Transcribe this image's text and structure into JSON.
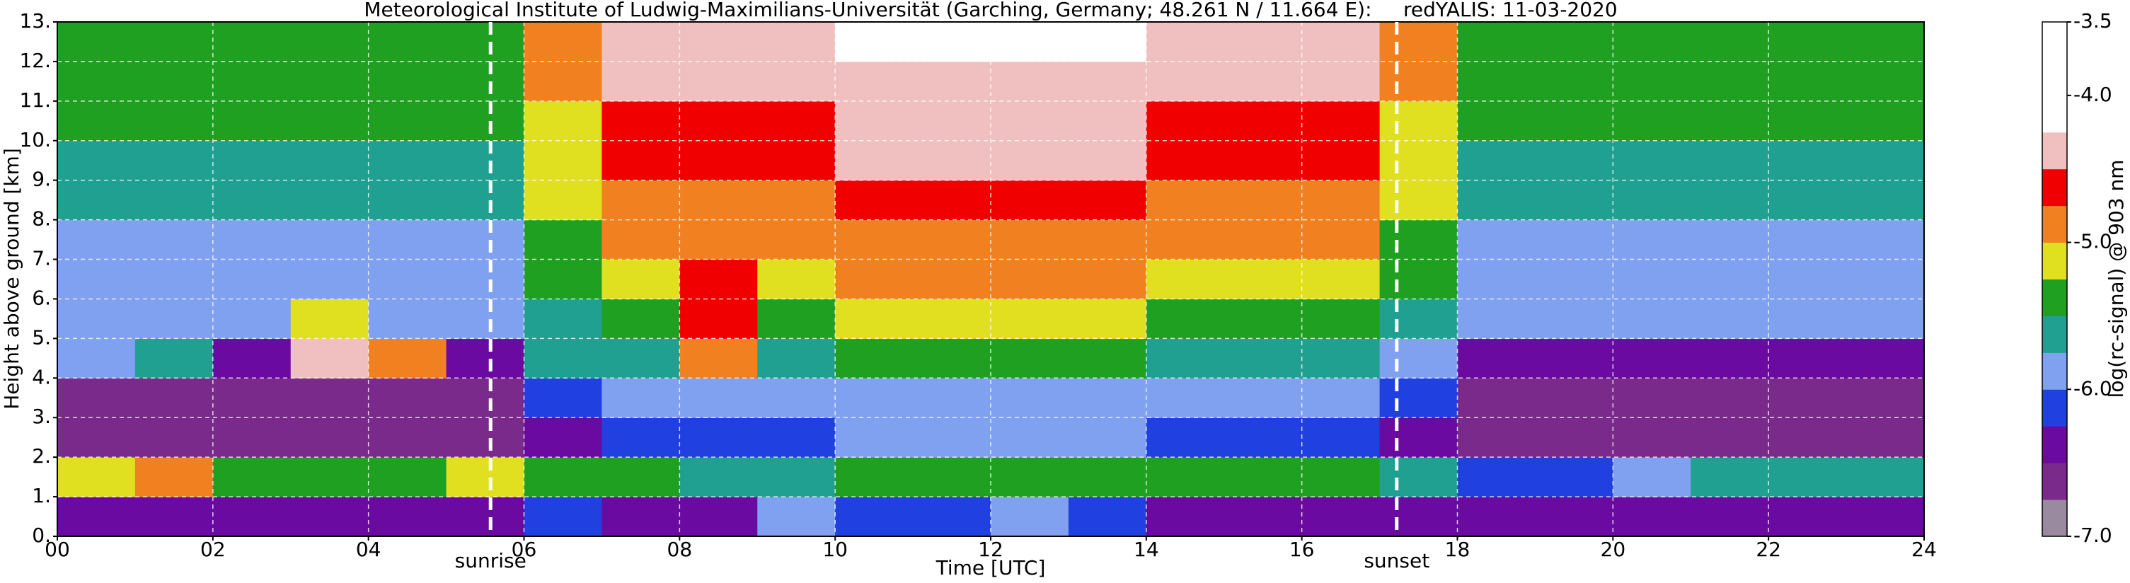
{
  "chart_data": {
    "type": "heatmap",
    "title": "Meteorological Institute of Ludwig-Maximilians-Universität (Garching, Germany; 48.261 N / 11.664 E):     redYALIS: 11-03-2020",
    "x_label": "Time [UTC]",
    "y_label": "Height above ground [km]",
    "colorbar_label": "log(rc-signal) @ 903 nm",
    "xlim": [
      0,
      24
    ],
    "ylim": [
      0,
      13
    ],
    "xticks": [
      {
        "value": 0,
        "label": "00"
      },
      {
        "value": 2,
        "label": "02"
      },
      {
        "value": 4,
        "label": "04"
      },
      {
        "value": 6,
        "label": "06"
      },
      {
        "value": 8,
        "label": "08"
      },
      {
        "value": 10,
        "label": "10"
      },
      {
        "value": 12,
        "label": "12"
      },
      {
        "value": 14,
        "label": "14"
      },
      {
        "value": 16,
        "label": "16"
      },
      {
        "value": 18,
        "label": "18"
      },
      {
        "value": 20,
        "label": "20"
      },
      {
        "value": 22,
        "label": "22"
      },
      {
        "value": 24,
        "label": "24"
      }
    ],
    "yticks": [
      {
        "value": 0,
        "label": "0."
      },
      {
        "value": 1,
        "label": "1."
      },
      {
        "value": 2,
        "label": "2."
      },
      {
        "value": 3,
        "label": "3."
      },
      {
        "value": 4,
        "label": "4."
      },
      {
        "value": 5,
        "label": "5."
      },
      {
        "value": 6,
        "label": "6."
      },
      {
        "value": 7,
        "label": "7."
      },
      {
        "value": 8,
        "label": "8."
      },
      {
        "value": 9,
        "label": "9."
      },
      {
        "value": 10,
        "label": "10."
      },
      {
        "value": 11,
        "label": "11."
      },
      {
        "value": 12,
        "label": "12."
      },
      {
        "value": 13,
        "label": "13."
      }
    ],
    "grid": true,
    "clim": [
      -7,
      -3.5
    ],
    "cticks": [
      {
        "value": -7,
        "label": "-7.0"
      },
      {
        "value": -6,
        "label": "-6.0"
      },
      {
        "value": -5,
        "label": "-5.0"
      },
      {
        "value": -4,
        "label": "-4.0"
      },
      {
        "value": -3.5,
        "label": "-3.5"
      }
    ],
    "colors": [
      "#9a8aa0",
      "#7a2a8a",
      "#6a0aa0",
      "#2040e0",
      "#80a0f0",
      "#20a090",
      "#20a020",
      "#e0e020",
      "#f08020",
      "#f00000",
      "#f0c0c0",
      "#ffffff",
      "#ffffff",
      "#ffffff"
    ],
    "annotations": [
      {
        "label": "sunrise",
        "x": 5.57
      },
      {
        "label": "sunset",
        "x": 17.22
      }
    ],
    "xbins": [
      0,
      1,
      2,
      3,
      4,
      5,
      6,
      7,
      8,
      9,
      10,
      11,
      12,
      13,
      14,
      15,
      16,
      17,
      18,
      19,
      20,
      21,
      22,
      23,
      24
    ],
    "ybins": [
      0,
      1,
      2,
      3,
      4,
      5,
      6,
      7,
      8,
      9,
      10,
      11,
      12,
      13
    ],
    "z": [
      [
        -6.5,
        -6.5,
        -6.5,
        -6.5,
        -6.5,
        -6.5,
        -6.2,
        -6.3,
        -6.3,
        -5.8,
        -6.2,
        -6.2,
        -6.0,
        -6.2,
        -6.3,
        -6.3,
        -6.3,
        -6.4,
        -6.5,
        -6.5,
        -6.5,
        -6.5,
        -6.5,
        -6.5
      ],
      [
        -5.2,
        -5.0,
        -5.3,
        -5.4,
        -5.3,
        -5.2,
        -5.3,
        -5.4,
        -5.6,
        -5.6,
        -5.4,
        -5.4,
        -5.3,
        -5.4,
        -5.5,
        -5.4,
        -5.3,
        -5.6,
        -6.2,
        -6.2,
        -6.0,
        -5.6,
        -5.6,
        -5.7
      ],
      [
        -6.7,
        -6.7,
        -6.7,
        -6.7,
        -6.7,
        -6.6,
        -6.4,
        -6.1,
        -6.1,
        -6.1,
        -6.0,
        -6.0,
        -6.0,
        -6.0,
        -6.1,
        -6.1,
        -6.1,
        -6.4,
        -6.7,
        -6.7,
        -6.7,
        -6.7,
        -6.7,
        -6.7
      ],
      [
        -6.6,
        -6.6,
        -6.6,
        -6.6,
        -6.6,
        -6.6,
        -6.25,
        -5.9,
        -5.9,
        -5.9,
        -5.8,
        -5.8,
        -5.8,
        -5.8,
        -5.9,
        -5.9,
        -5.9,
        -6.25,
        -6.6,
        -6.6,
        -6.6,
        -6.6,
        -6.6,
        -6.6
      ],
      [
        -5.8,
        -5.6,
        -6.3,
        -4.5,
        -5.0,
        -6.3,
        -5.6,
        -5.6,
        -4.8,
        -5.6,
        -5.5,
        -5.5,
        -5.5,
        -5.5,
        -5.6,
        -5.6,
        -5.6,
        -5.95,
        -6.3,
        -6.3,
        -6.3,
        -6.3,
        -6.3,
        -6.3
      ],
      [
        -6.0,
        -6.0,
        -6.0,
        -5.2,
        -6.0,
        -6.0,
        -5.65,
        -5.3,
        -4.6,
        -5.3,
        -5.2,
        -5.2,
        -5.2,
        -5.2,
        -5.3,
        -5.3,
        -5.3,
        -5.65,
        -6.0,
        -6.0,
        -6.0,
        -6.0,
        -6.0,
        -6.0
      ],
      [
        -5.9,
        -5.9,
        -5.9,
        -5.9,
        -5.9,
        -5.9,
        -5.5,
        -5.1,
        -4.6,
        -5.1,
        -5.0,
        -5.0,
        -5.0,
        -5.0,
        -5.1,
        -5.1,
        -5.1,
        -5.5,
        -5.9,
        -5.9,
        -5.9,
        -5.9,
        -5.9,
        -5.9
      ],
      [
        -5.8,
        -5.8,
        -5.8,
        -5.8,
        -5.8,
        -5.8,
        -5.35,
        -4.9,
        -4.9,
        -4.9,
        -4.8,
        -4.8,
        -4.8,
        -4.8,
        -4.9,
        -4.9,
        -4.9,
        -5.35,
        -5.8,
        -5.8,
        -5.8,
        -5.8,
        -5.8,
        -5.8
      ],
      [
        -5.7,
        -5.7,
        -5.7,
        -5.7,
        -5.7,
        -5.7,
        -5.25,
        -4.8,
        -4.8,
        -4.8,
        -4.6,
        -4.6,
        -4.6,
        -4.6,
        -4.8,
        -4.8,
        -4.8,
        -5.25,
        -5.7,
        -5.7,
        -5.7,
        -5.7,
        -5.7,
        -5.7
      ],
      [
        -5.6,
        -5.6,
        -5.6,
        -5.6,
        -5.6,
        -5.6,
        -5.15,
        -4.7,
        -4.7,
        -4.7,
        -4.5,
        -4.5,
        -4.5,
        -4.5,
        -4.7,
        -4.7,
        -4.7,
        -5.15,
        -5.6,
        -5.6,
        -5.6,
        -5.6,
        -5.6,
        -5.6
      ],
      [
        -5.5,
        -5.5,
        -5.5,
        -5.5,
        -5.5,
        -5.5,
        -5.05,
        -4.6,
        -4.6,
        -4.6,
        -4.4,
        -4.4,
        -4.4,
        -4.4,
        -4.6,
        -4.6,
        -4.6,
        -5.05,
        -5.5,
        -5.5,
        -5.5,
        -5.5,
        -5.5,
        -5.5
      ],
      [
        -5.4,
        -5.4,
        -5.4,
        -5.4,
        -5.4,
        -5.4,
        -4.95,
        -4.5,
        -4.5,
        -4.5,
        -4.3,
        -4.3,
        -4.3,
        -4.3,
        -4.5,
        -4.5,
        -4.5,
        -4.95,
        -5.4,
        -5.4,
        -5.4,
        -5.4,
        -5.4,
        -5.4
      ],
      [
        -5.3,
        -5.3,
        -5.3,
        -5.3,
        -5.3,
        -5.3,
        -4.85,
        -4.4,
        -4.4,
        -4.4,
        -4.2,
        -4.2,
        -4.2,
        -4.2,
        -4.4,
        -4.4,
        -4.4,
        -4.85,
        -5.3,
        -5.3,
        -5.3,
        -5.3,
        -5.3,
        -5.3
      ]
    ]
  }
}
